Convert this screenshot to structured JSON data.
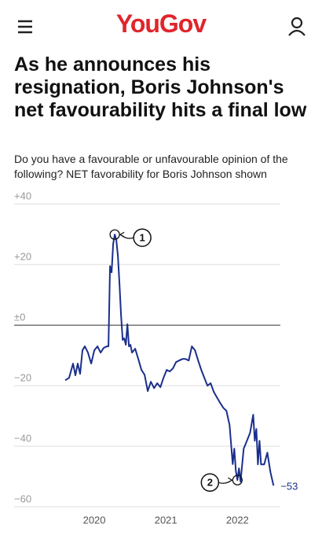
{
  "header": {
    "logo": "YouGov"
  },
  "chart_data": {
    "type": "line",
    "title": "As he announces his resignation, Boris Johnson's net favourability hits a final low",
    "subtitle": "Do you have a favourable or unfavourable opinion of the following? NET favorability for Boris Johnson shown",
    "color": "#1a2f8c",
    "x": [
      2019.593,
      2019.648,
      2019.703,
      2019.736,
      2019.769,
      2019.802,
      2019.835,
      2019.868,
      2019.912,
      2019.956,
      2020.0,
      2020.044,
      2020.088,
      2020.132,
      2020.176,
      2020.198,
      2020.22,
      2020.242,
      2020.264,
      2020.286,
      2020.308,
      2020.33,
      2020.352,
      2020.374,
      2020.396,
      2020.418,
      2020.44,
      2020.462,
      2020.484,
      2020.505,
      2020.527,
      2020.571,
      2020.615,
      2020.659,
      2020.703,
      2020.747,
      2020.791,
      2020.835,
      2020.879,
      2020.923,
      2020.967,
      2021.011,
      2021.055,
      2021.099,
      2021.143,
      2021.187,
      2021.231,
      2021.275,
      2021.319,
      2021.363,
      2021.407,
      2021.451,
      2021.495,
      2021.538,
      2021.582,
      2021.626,
      2021.67,
      2021.714,
      2021.758,
      2021.802,
      2021.846,
      2021.89,
      2021.934,
      2021.956,
      2021.978,
      2022.0,
      2022.022,
      2022.044,
      2022.088,
      2022.132,
      2022.176,
      2022.22,
      2022.242,
      2022.264,
      2022.286,
      2022.308,
      2022.33,
      2022.374,
      2022.418,
      2022.462,
      2022.505
    ],
    "values": [
      -18.2,
      -17.4,
      -12.7,
      -16.6,
      -12.7,
      -16.1,
      -8.3,
      -7.0,
      -9.1,
      -12.7,
      -8.3,
      -7.0,
      -9.1,
      -7.5,
      -7.0,
      -7.0,
      19.5,
      17.4,
      26.8,
      29.9,
      28.1,
      22.9,
      13.8,
      3.4,
      -4.9,
      -4.4,
      -6.5,
      0.3,
      -7.0,
      -6.5,
      -9.1,
      -7.8,
      -11.2,
      -14.8,
      -16.4,
      -21.8,
      -18.7,
      -20.8,
      -19.2,
      -20.5,
      -17.4,
      -14.8,
      -15.3,
      -14.3,
      -12.2,
      -11.7,
      -11.2,
      -11.2,
      -11.7,
      -7.0,
      -8.3,
      -11.7,
      -14.8,
      -17.4,
      -20.0,
      -19.2,
      -22.1,
      -23.9,
      -25.7,
      -27.3,
      -28.3,
      -33.0,
      -45.9,
      -40.8,
      -48.1,
      -51.2,
      -47.3,
      -51.7,
      -40.8,
      -38.2,
      -35.6,
      -29.6,
      -38.2,
      -34.3,
      -46.0,
      -38.2,
      -46.0,
      -46.0,
      -42.1,
      -48.6,
      -53.0
    ],
    "end_label": {
      "value": -53,
      "label": "−53"
    },
    "annotations": [
      {
        "label": "1",
        "x": 2020.286,
        "y": 29.9
      },
      {
        "label": "2",
        "x": 2022.0,
        "y": -51.2
      }
    ],
    "xlim": [
      2018.88,
      2022.6
    ],
    "xticks": [
      2020,
      2021,
      2022
    ],
    "ylim": [
      -61,
      45
    ],
    "yticks": [
      {
        "value": 40,
        "label": "+40"
      },
      {
        "value": 20,
        "label": "+20"
      },
      {
        "value": 0,
        "label": "±0"
      },
      {
        "value": -20,
        "label": "−20"
      },
      {
        "value": -40,
        "label": "−40"
      },
      {
        "value": -60,
        "label": "−60"
      }
    ],
    "grid": true
  }
}
